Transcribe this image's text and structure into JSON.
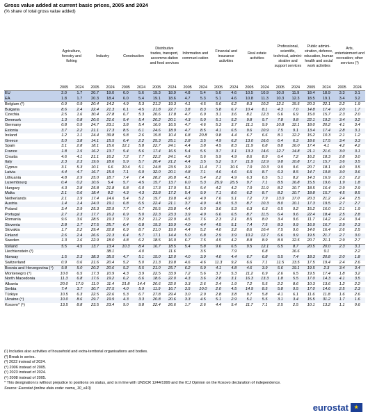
{
  "title": "Gross value added at current basic prices, 2005 and 2024",
  "subtitle": "(% share of total gross value added)",
  "columns": [
    "Agriculture, forestry and fishing",
    "Industry",
    "Construction",
    "Distributive trades, transport, accommo-dation and food services",
    "Information and communi-cation",
    "Financial and insurance activities",
    "Real estate activities",
    "Professional, scientific, technical, admini-strative and support services",
    "Public admini-stration, defence, education, human health and social work activities",
    "Arts, entertainment and recreation; other services (¹)"
  ],
  "years": [
    "2005",
    "2024"
  ],
  "rows": [
    {
      "name": "EU",
      "values": [
        "2.0",
        "1.7",
        "20.7",
        "19.0",
        "6.0",
        "5.6",
        "19.3",
        "18.9",
        "4.8",
        "5.4",
        "5.0",
        "4.6",
        "10.5",
        "10.9",
        "10.0",
        "11.9",
        "18.4",
        "18.9",
        "3.3",
        "3.1"
      ]
    },
    {
      "name": "EA",
      "values": [
        "1.8",
        "1.7",
        "20.3",
        "18.4",
        "6.0",
        "5.4",
        "19.1",
        "18.6",
        "4.7",
        "5.3",
        "5.1",
        "4.6",
        "10.8",
        "11.3",
        "10.3",
        "12.3",
        "18.5",
        "19.1",
        "3.4",
        "3.2"
      ]
    },
    {
      "name": "Belgium (²)",
      "values": [
        "0.9",
        "0.9",
        "20.4",
        "14.2",
        "4.9",
        "5.3",
        "21.2",
        "19.3",
        "4.1",
        "4.5",
        "5.6",
        "6.2",
        "8.3",
        "10.2",
        "12.1",
        "15.5",
        "20.3",
        "22.1",
        "2.2",
        "1.9"
      ]
    },
    {
      "name": "Bulgaria",
      "values": [
        "8.6",
        "2.4",
        "22.4",
        "21.3",
        "6.1",
        "4.5",
        "21.8",
        "22.7",
        "3.8",
        "8.3",
        "5.8",
        "6.7",
        "10.4",
        "8.1",
        "4.3",
        "7.0",
        "14.8",
        "17.4",
        "2.0",
        "1.7"
      ]
    },
    {
      "name": "Czechia",
      "values": [
        "2.5",
        "1.6",
        "30.4",
        "27.8",
        "6.7",
        "5.3",
        "20.6",
        "17.8",
        "4.7",
        "6.9",
        "3.1",
        "3.6",
        "8.1",
        "12.3",
        "6.6",
        "6.9",
        "15.0",
        "15.7",
        "2.3",
        "2.0"
      ]
    },
    {
      "name": "Denmark",
      "values": [
        "1.3",
        "0.8",
        "20.6",
        "21.6",
        "5.4",
        "5.4",
        "20.2",
        "20.1",
        "4.3",
        "5.0",
        "5.1",
        "5.2",
        "9.8",
        "9.7",
        "7.8",
        "9.8",
        "22.1",
        "19.2",
        "3.4",
        "3.2"
      ]
    },
    {
      "name": "Germany",
      "values": [
        "0.8",
        "0.9",
        "24.7",
        "23.1",
        "3.8",
        "5.4",
        "16.6",
        "16.5",
        "4.7",
        "4.6",
        "5.3",
        "3.7",
        "11.1",
        "9.9",
        "10.8",
        "12.1",
        "18.0",
        "20.2",
        "4.1",
        "3.4"
      ]
    },
    {
      "name": "Estonia",
      "values": [
        "3.7",
        "2.2",
        "21.1",
        "17.3",
        "8.5",
        "6.1",
        "24.6",
        "18.9",
        "4.7",
        "8.5",
        "4.1",
        "6.5",
        "9.6",
        "10.9",
        "7.5",
        "9.1",
        "13.4",
        "17.4",
        "2.8",
        "3.1"
      ]
    },
    {
      "name": "Ireland",
      "values": [
        "1.2",
        "1.1",
        "24.4",
        "39.8",
        "9.8",
        "2.6",
        "15.8",
        "10.4",
        "6.8",
        "20.8",
        "9.8",
        "4.4",
        "6.7",
        "6.6",
        "8.1",
        "12.2",
        "15.2",
        "10.3",
        "2.1",
        "1.2"
      ]
    },
    {
      "name": "Greece",
      "values": [
        "5.0",
        "3.8",
        "14.1",
        "15.5",
        "6.4",
        "2.2",
        "25.3",
        "25.1",
        "2.8",
        "3.5",
        "4.9",
        "6.2",
        "13.0",
        "16.6",
        "6.4",
        "6.3",
        "18.6",
        "17.5",
        "3.4",
        "3.3"
      ]
    },
    {
      "name": "Spain",
      "values": [
        "3.1",
        "2.8",
        "18.1",
        "15.6",
        "12.1",
        "5.8",
        "22.7",
        "24.1",
        "4.4",
        "3.8",
        "4.5",
        "8.3",
        "11.9",
        "6.8",
        "8.8",
        "16.0",
        "17.4",
        "4.1",
        "4.2",
        "4.2"
      ]
    },
    {
      "name": "France",
      "values": [
        "1.8",
        "1.5",
        "16.2",
        "13.7",
        "5.4",
        "5.6",
        "17.4",
        "16.5",
        "5.4",
        "5.5",
        "3.7",
        "3.1",
        "13.3",
        "14.6",
        "12.7",
        "14.8",
        "21.1",
        "21.6",
        "3.0",
        "3.1"
      ]
    },
    {
      "name": "Croatia",
      "values": [
        "4.6",
        "4.1",
        "21.1",
        "16.2",
        "7.2",
        "7.7",
        "22.2",
        "24.1",
        "4.9",
        "5.6",
        "5.9",
        "4.9",
        "8.6",
        "8.9",
        "6.4",
        "7.2",
        "16.2",
        "18.3",
        "2.8",
        "3.0"
      ]
    },
    {
      "name": "Italy",
      "values": [
        "2.3",
        "2.3",
        "19.6",
        "18.6",
        "5.9",
        "5.7",
        "20.4",
        "21.2",
        "4.4",
        "3.5",
        "5.2",
        "5.7",
        "11.9",
        "12.9",
        "9.8",
        "10.8",
        "17.1",
        "15.7",
        "3.6",
        "3.5"
      ]
    },
    {
      "name": "Cyprus",
      "values": [
        "3.1",
        "5.3",
        "10.1",
        "6.6",
        "10.4",
        "5.1",
        "24.8",
        "23.5",
        "3.9",
        "11.4",
        "7.1",
        "10.6",
        "7.9",
        "10.3",
        "9.9",
        "9.6",
        "20.7",
        "18.1",
        "4.0",
        "3.5"
      ]
    },
    {
      "name": "Latvia",
      "values": [
        "4.4",
        "4.7",
        "16.7",
        "15.9",
        "7.1",
        "6.9",
        "32.0",
        "20.1",
        "4.8",
        "7.1",
        "4.6",
        "4.6",
        "6.5",
        "8.7",
        "6.3",
        "8.5",
        "14.7",
        "19.8",
        "3.0",
        "3.6"
      ]
    },
    {
      "name": "Lithuania",
      "values": [
        "4.8",
        "2.9",
        "25.0",
        "18.7",
        "7.4",
        "7.4",
        "28.2",
        "26.8",
        "4.1",
        "5.4",
        "2.2",
        "4.9",
        "6.3",
        "6.5",
        "5.1",
        "8.2",
        "14.3",
        "16.9",
        "2.3",
        "2.2"
      ]
    },
    {
      "name": "Luxembourg",
      "values": [
        "0.4",
        "0.2",
        "10.6",
        "5.4",
        "5.7",
        "4.5",
        "15.7",
        "13.7",
        "6.0",
        "5.3",
        "25.9",
        "25.5",
        "9.7",
        "7.1",
        "8.5",
        "16.8",
        "15.5",
        "19.6",
        "1.9",
        "1.8"
      ]
    },
    {
      "name": "Hungary",
      "values": [
        "4.3",
        "2.8",
        "25.8",
        "21.8",
        "5.8",
        "6.0",
        "17.3",
        "17.9",
        "5.1",
        "5.4",
        "4.2",
        "4.2",
        "7.9",
        "11.9",
        "8.2",
        "10.7",
        "18.5",
        "16.4",
        "2.9",
        "2.9"
      ]
    },
    {
      "name": "Malta",
      "values": [
        "2.1",
        "0.6",
        "18.4",
        "8.2",
        "4.3",
        "4.3",
        "23.8",
        "17.2",
        "5.4",
        "9.9",
        "7.1",
        "8.6",
        "6.2",
        "8.7",
        "8.2",
        "10.7",
        "18.8",
        "15.7",
        "4.5",
        "8.5"
      ]
    },
    {
      "name": "Netherlands",
      "values": [
        "2.1",
        "1.9",
        "17.4",
        "14.6",
        "5.4",
        "5.2",
        "19.7",
        "19.8",
        "4.9",
        "4.9",
        "7.6",
        "5.1",
        "7.2",
        "7.9",
        "13.0",
        "17.0",
        "20.3",
        "21.2",
        "2.4",
        "2.5"
      ]
    },
    {
      "name": "Austria",
      "values": [
        "1.4",
        "1.4",
        "24.0",
        "19.1",
        "6.8",
        "6.5",
        "22.4",
        "21.1",
        "3.7",
        "4.9",
        "4.5",
        "5.3",
        "8.7",
        "10.3",
        "8.0",
        "10.1",
        "17.3",
        "19.5",
        "2.7",
        "2.7"
      ]
    },
    {
      "name": "Poland",
      "values": [
        "3.4",
        "2.9",
        "25.3",
        "22.9",
        "7.7",
        "6.7",
        "25.5",
        "23.8",
        "4.4",
        "5.0",
        "3.6",
        "5.3",
        "6.3",
        "6.3",
        "6.5",
        "9.2",
        "15.2",
        "16.0",
        "2.1",
        "1.9"
      ]
    },
    {
      "name": "Portugal",
      "values": [
        "2.7",
        "2.3",
        "17.7",
        "16.2",
        "6.9",
        "5.0",
        "22.3",
        "23.3",
        "3.9",
        "4.9",
        "6.6",
        "6.5",
        "8.7",
        "11.5",
        "6.4",
        "9.6",
        "22.4",
        "18.4",
        "2.5",
        "2.8"
      ]
    },
    {
      "name": "Romania",
      "values": [
        "9.6",
        "3.6",
        "28.5",
        "19.3",
        "7.9",
        "8.2",
        "21.2",
        "22.9",
        "4.5",
        "7.6",
        "2.3",
        "2.1",
        "8.5",
        "8.0",
        "3.4",
        "9.6",
        "11.7",
        "14.2",
        "2.4",
        "3.4"
      ]
    },
    {
      "name": "Slovenia",
      "values": [
        "2.8",
        "1.7",
        "27.5",
        "25.7",
        "6.4",
        "6.8",
        "19.3",
        "19.9",
        "4.0",
        "4.4",
        "4.5",
        "5.1",
        "7.4",
        "7.5",
        "8.3",
        "9.9",
        "16.9",
        "16.7",
        "2.9",
        "2.3"
      ]
    },
    {
      "name": "Slovakia",
      "values": [
        "1.7",
        "2.2",
        "29.4",
        "22.8",
        "6.9",
        "8.7",
        "21.0",
        "19.0",
        "4.4",
        "5.2",
        "4.0",
        "3.2",
        "8.6",
        "10.4",
        "7.5",
        "9.6",
        "14.0",
        "16.4",
        "2.6",
        "2.5"
      ]
    },
    {
      "name": "Finland",
      "values": [
        "2.6",
        "2.4",
        "26.6",
        "21.3",
        "6.4",
        "5.7",
        "17.1",
        "14.4",
        "5.0",
        "6.8",
        "2.9",
        "3.9",
        "10.2",
        "12.7",
        "6.6",
        "9.9",
        "19.5",
        "21.7",
        "2.7",
        "3.0"
      ]
    },
    {
      "name": "Sweden",
      "values": [
        "1.3",
        "1.6",
        "22.9",
        "18.0",
        "4.8",
        "6.2",
        "18.5",
        "16.9",
        "6.7",
        "7.5",
        "4.5",
        "4.2",
        "8.8",
        "8.9",
        "8.9",
        "12.5",
        "20.7",
        "21.1",
        "2.9",
        "2.7"
      ]
    },
    {
      "name": "Iceland",
      "values": [
        "5.5",
        "4.5",
        "13.7",
        "13.4",
        "10.3",
        "8.4",
        "16.7",
        "18.5",
        "5.4",
        "5.8",
        "9.6",
        "6.5",
        "9.5",
        "12.1",
        "6.5",
        "8.7",
        "20.5",
        "20.0",
        "2.3",
        "3.1"
      ]
    },
    {
      "name": "Liechtenstein (³)",
      "values": [
        "",
        "",
        "",
        "38.1",
        "",
        "4.0",
        "",
        "11.6",
        "",
        "3.5",
        "",
        "7.9",
        "",
        "6.8",
        "",
        "16.6",
        "",
        "9.1",
        "",
        "2.2"
      ]
    },
    {
      "name": "Norway",
      "values": [
        "1.5",
        "2.3",
        "38.3",
        "35.5",
        "4.7",
        "5.1",
        "15.0",
        "12.0",
        "4.0",
        "3.9",
        "4.0",
        "4.4",
        "6.7",
        "6.8",
        "5.5",
        "7.4",
        "18.3",
        "20.8",
        "2.0",
        "1.8"
      ]
    },
    {
      "name": "Switzerland",
      "values": [
        "0.9",
        "0.6",
        "21.6",
        "20.4",
        "5.2",
        "5.0",
        "21.3",
        "19.8",
        "4.6",
        "4.6",
        "11.3",
        "9.2",
        "6.6",
        "7.1",
        "11.5",
        "13.5",
        "17.5",
        "19.4",
        "2.4",
        "2.6"
      ]
    },
    {
      "name": "Bosnia and Herzegovina (⁴)",
      "values": [
        "9.8",
        "5.0",
        "20.2",
        "20.6",
        "5.2",
        "5.5",
        "21.0",
        "25.7",
        "6.2",
        "5.9",
        "4.1",
        "4.8",
        "4.6",
        "3.9",
        "5.6",
        "19.1",
        "19.5",
        "2.3",
        "3.4",
        "3.4"
      ]
    },
    {
      "name": "Montenegro (⁴)",
      "values": [
        "10.0",
        "6.5",
        "17.3",
        "10.9",
        "4.3",
        "3.9",
        "22.5",
        "33.9",
        "7.2",
        "5.6",
        "3.7",
        "5.3",
        "11.2",
        "6.9",
        "2.6",
        "6.5",
        "19.5",
        "17.4",
        "1.8",
        "3.2"
      ]
    },
    {
      "name": "North Macedonia",
      "values": [
        "11.3",
        "6.8",
        "17.6",
        "19.2",
        "6.2",
        "6.6",
        "18.6",
        "22.0",
        "4.3",
        "3.6",
        "2.8",
        "3.1",
        "16.3",
        "13.3",
        "1.8",
        "5.5",
        "17.0",
        "14.3",
        "4.1",
        "3.5"
      ]
    },
    {
      "name": "Albania",
      "values": [
        "20.0",
        "17.9",
        "11.0",
        "11.4",
        "21.8",
        "14.4",
        "20.6",
        "22.0",
        "3.3",
        "2.6",
        "2.4",
        "1.9",
        "7.2",
        "5.5",
        "2.2",
        "8.6",
        "10.3",
        "13.6",
        "1.2",
        "2.2"
      ]
    },
    {
      "name": "Serbia",
      "values": [
        "7.4",
        "3.7",
        "30.7",
        "27.5",
        "4.0",
        "5.9",
        "11.9",
        "16.7",
        "3.5",
        "10.0",
        "2.0",
        "4.5",
        "14.9",
        "8.5",
        "5.8",
        "9.5",
        "17.0",
        "14.6",
        "2.5",
        "2.3"
      ]
    },
    {
      "name": "Türkiye",
      "values": [
        "10.5",
        "6.3",
        "22.5",
        "22.6",
        "5.3",
        "6.7",
        "27.8",
        "29.4",
        "3.0",
        "2.9",
        "2.8",
        "3.8",
        "9.7",
        "5.8",
        "4.1",
        "6.1",
        "11.6",
        "11.8",
        "1.6",
        "2.6"
      ]
    },
    {
      "name": "Ukraine (⁴)",
      "values": [
        "10.0",
        "8.6",
        "29.7",
        "19.9",
        "4.3",
        "3.3",
        "20.8",
        "20.6",
        "3.3",
        "4.5",
        "5.1",
        "2.9",
        "5.1",
        "5.5",
        "3.1",
        "3.4",
        "15.5",
        "31.2",
        "1.7",
        "1.6"
      ]
    },
    {
      "name": "Kosovo* (⁵)",
      "values": [
        "13.5",
        "8.8",
        "23.5",
        "23.4",
        "9.0",
        "9.8",
        "22.4",
        "26.6",
        "1.7",
        "2.6",
        "4.4",
        "5.4",
        "11.7",
        "7.1",
        "2.5",
        "2.5",
        "10.1",
        "13.2",
        "1.1",
        "0.6"
      ]
    }
  ],
  "notes": [
    "(¹) Includes also activities of household and extra-territorial organisations and bodies.",
    "(²) Break in series.",
    "(³) 2022 instead of 2024.",
    "(⁴) 2006 instead of 2005.",
    "(⁵) 2023 instead of 2024.",
    "(⁶) 2008 instead of 2005.",
    "* This designation is without prejudice to positions on status, and is in line with UNSCR 1244/1999 and the ICJ Opinion on the Kosovo declaration of independence.",
    "Source: Eurostat (online data code: nama_10_a10)"
  ],
  "logo_text": "eurostat",
  "colors": {
    "aggregate_row": "#c4d2ea",
    "alt_row": "#eef2f9",
    "logo": "#1c3f95"
  }
}
